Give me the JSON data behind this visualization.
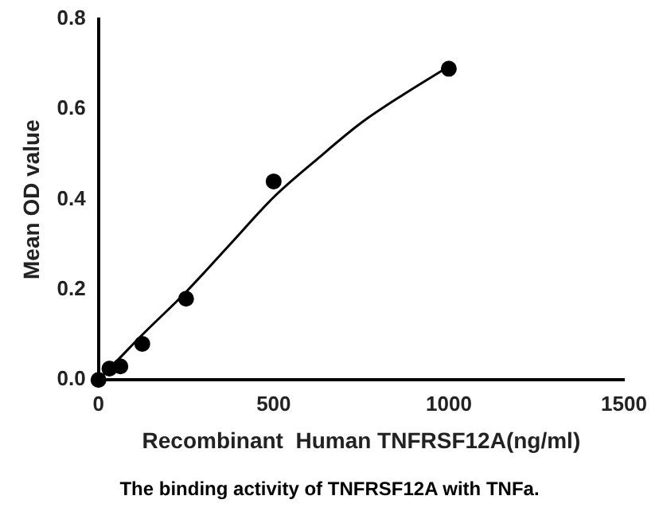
{
  "chart_data": {
    "type": "scatter",
    "xlabel": "Recombinant  Human TNFRSF12A(ng/ml)",
    "ylabel": "Mean OD value",
    "annotations": [
      "The binding activity of TNFRSF12A with TNFa."
    ],
    "series": [
      {
        "color": "#000000",
        "marker": "circle",
        "x": [
          0,
          15.6,
          31.25,
          62.5,
          125,
          250,
          500,
          1000
        ],
        "values": [
          0,
          null,
          0.025,
          0.03,
          0.08,
          0.18,
          0.44,
          0.69
        ]
      },
      {
        "type": "line",
        "color": "#000000",
        "marker": "none",
        "x": [
          0,
          62.5,
          125,
          250,
          375,
          500,
          625,
          750,
          875,
          1000
        ],
        "values": [
          0,
          0.05,
          0.1,
          0.195,
          0.3,
          0.405,
          0.49,
          0.57,
          0.635,
          0.695
        ]
      }
    ],
    "xlim": [
      0,
      1500
    ],
    "xticks": [
      0,
      500,
      1000,
      1500
    ],
    "ylim": [
      0,
      0.8
    ],
    "yticks": [
      {
        "value": 0,
        "label": "0.0"
      },
      {
        "value": 0.2,
        "label": "0.2"
      },
      {
        "value": 0.4,
        "label": "0.4"
      },
      {
        "value": 0.6,
        "label": "0.6"
      },
      {
        "value": 0.8,
        "label": "0.8"
      }
    ],
    "grid": false,
    "legend": false
  }
}
